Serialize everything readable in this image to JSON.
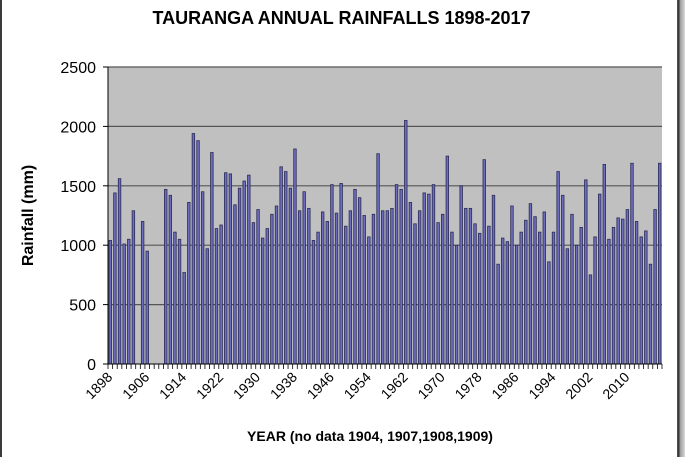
{
  "chart_data": {
    "type": "bar",
    "title": "TAURANGA ANNUAL RAINFALLS 1898-2017",
    "xlabel": "YEAR (no data 1904, 1907,1908,1909)",
    "ylabel": "Rainfall (mm)",
    "ylim": [
      0,
      2500
    ],
    "yticks": [
      0,
      500,
      1000,
      1500,
      2000,
      2500
    ],
    "xtick_labels": [
      "1898",
      "1906",
      "1914",
      "1922",
      "1930",
      "1938",
      "1946",
      "1954",
      "1962",
      "1970",
      "1978",
      "1986",
      "1994",
      "2002",
      "2010"
    ],
    "grid": true,
    "legend": "none",
    "colors": {
      "bar": "#6d6dbf",
      "bar_edge": "#2b2b55",
      "plot_bg": "#c0c0c0",
      "grid": "#555555"
    },
    "start_year": 1898,
    "end_year": 2017,
    "values": [
      1040,
      1440,
      1560,
      1010,
      1050,
      1290,
      null,
      1200,
      950,
      null,
      null,
      null,
      1470,
      1420,
      1110,
      1050,
      770,
      1360,
      1940,
      1880,
      1450,
      970,
      1780,
      1140,
      1170,
      1610,
      1600,
      1340,
      1480,
      1540,
      1590,
      1190,
      1300,
      1060,
      1140,
      1260,
      1330,
      1660,
      1620,
      1480,
      1810,
      1290,
      1450,
      1310,
      1040,
      1110,
      1280,
      1200,
      1510,
      1270,
      1520,
      1160,
      1290,
      1470,
      1400,
      1250,
      1070,
      1260,
      1770,
      1290,
      1290,
      1310,
      1510,
      1470,
      2050,
      1360,
      1180,
      1290,
      1440,
      1430,
      1510,
      1190,
      1260,
      1750,
      1110,
      1000,
      1500,
      1310,
      1310,
      1180,
      1100,
      1720,
      1160,
      1420,
      840,
      1060,
      1030,
      1330,
      1000,
      1110,
      1210,
      1350,
      1240,
      1110,
      1280,
      860,
      1110,
      1620,
      1420,
      970,
      1260,
      1000,
      1150,
      1550,
      750,
      1070,
      1430,
      1680,
      1050,
      1150,
      1230,
      1220,
      1300,
      1690,
      1200,
      1070,
      1120,
      840,
      1300,
      1690
    ]
  }
}
